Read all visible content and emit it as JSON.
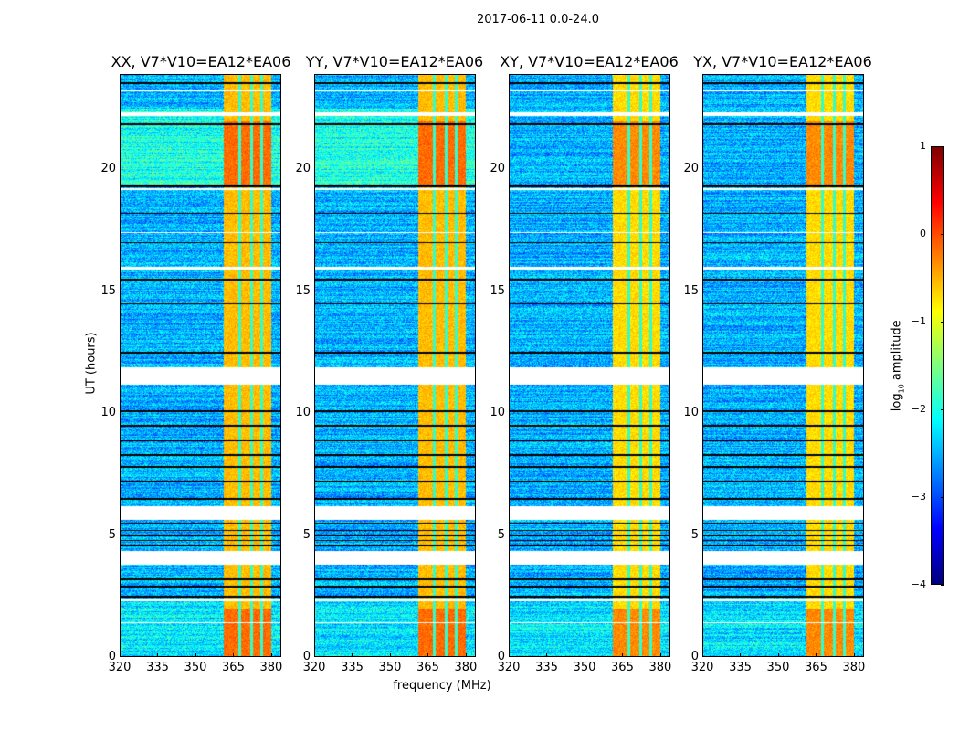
{
  "chart_data": {
    "type": "heatmap",
    "suptitle": "2017-06-11 0.0-24.0",
    "panels": [
      {
        "title": "XX, V7*V10=EA12*EA06",
        "id": "xx"
      },
      {
        "title": "YY, V7*V10=EA12*EA06",
        "id": "yy"
      },
      {
        "title": "XY, V7*V10=EA12*EA06",
        "id": "xy"
      },
      {
        "title": "YX, V7*V10=EA12*EA06",
        "id": "yx"
      }
    ],
    "xlabel": "frequency (MHz)",
    "ylabel": "UT (hours)",
    "xlim": [
      320,
      384
    ],
    "ylim": [
      0,
      23.9
    ],
    "xticks": [
      320,
      335,
      350,
      365,
      380
    ],
    "yticks": [
      0,
      5,
      10,
      15,
      20
    ],
    "colorbar": {
      "label": "log10 amplitude",
      "label_main": "log",
      "label_sub": "10",
      "label_rest": " amplitude",
      "range": [
        -4,
        1
      ],
      "ticks": [
        1,
        0,
        -1,
        -2,
        -3,
        -4
      ],
      "tick_labels": [
        "1",
        "0",
        "−1",
        "−2",
        "−3",
        "−4"
      ],
      "colormap": "jet"
    },
    "high_amplitude_band_mhz": [
      361,
      380
    ],
    "band_notch_freqs_mhz": [
      367.5,
      372,
      376
    ],
    "background_log_amplitude": -2.5,
    "band_log_amplitude": -0.6,
    "flagged_hours": [
      [
        3.8,
        4.35
      ],
      [
        5.65,
        6.2
      ],
      [
        11.2,
        11.9
      ],
      [
        22.2,
        22.35
      ],
      [
        23.2,
        23.3
      ],
      [
        19.15,
        19.25
      ],
      [
        2.3,
        2.4
      ],
      [
        1.4,
        1.45
      ],
      [
        17.4,
        17.45
      ],
      [
        15.9,
        16.0
      ]
    ],
    "dark_lines_hours": [
      19.3,
      19.35,
      23.55,
      21.85,
      18.2,
      17.0,
      15.5,
      14.5,
      12.5,
      10.1,
      9.5,
      8.9,
      8.3,
      7.8,
      7.2,
      6.5,
      5.5,
      5.2,
      5.0,
      4.8,
      4.6,
      2.5,
      3.2,
      2.9
    ]
  }
}
